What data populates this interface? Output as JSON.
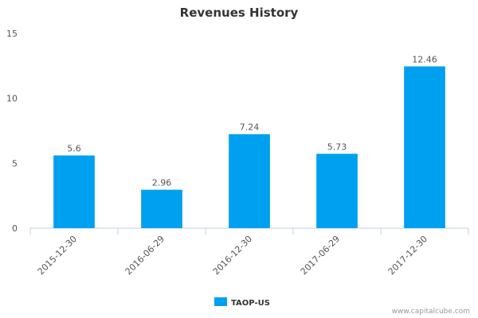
{
  "chart_data": {
    "type": "bar",
    "title": "Revenues History",
    "categories": [
      "2015-12-30",
      "2016-06-29",
      "2016-12-30",
      "2017-06-29",
      "2017-12-30"
    ],
    "series": [
      {
        "name": "TAOP-US",
        "values": [
          5.6,
          2.96,
          7.24,
          5.73,
          12.46
        ]
      }
    ],
    "data_labels": [
      "5.6",
      "2.96",
      "7.24",
      "5.73",
      "12.46"
    ],
    "yticks": [
      "0",
      "5",
      "10",
      "15"
    ],
    "ylim": [
      0,
      15
    ],
    "xlabel": "",
    "ylabel": "",
    "grid": false,
    "legend_position": "bottom-center",
    "bar_color": "#00a0f0"
  },
  "credit": "www.capitalcube.com"
}
